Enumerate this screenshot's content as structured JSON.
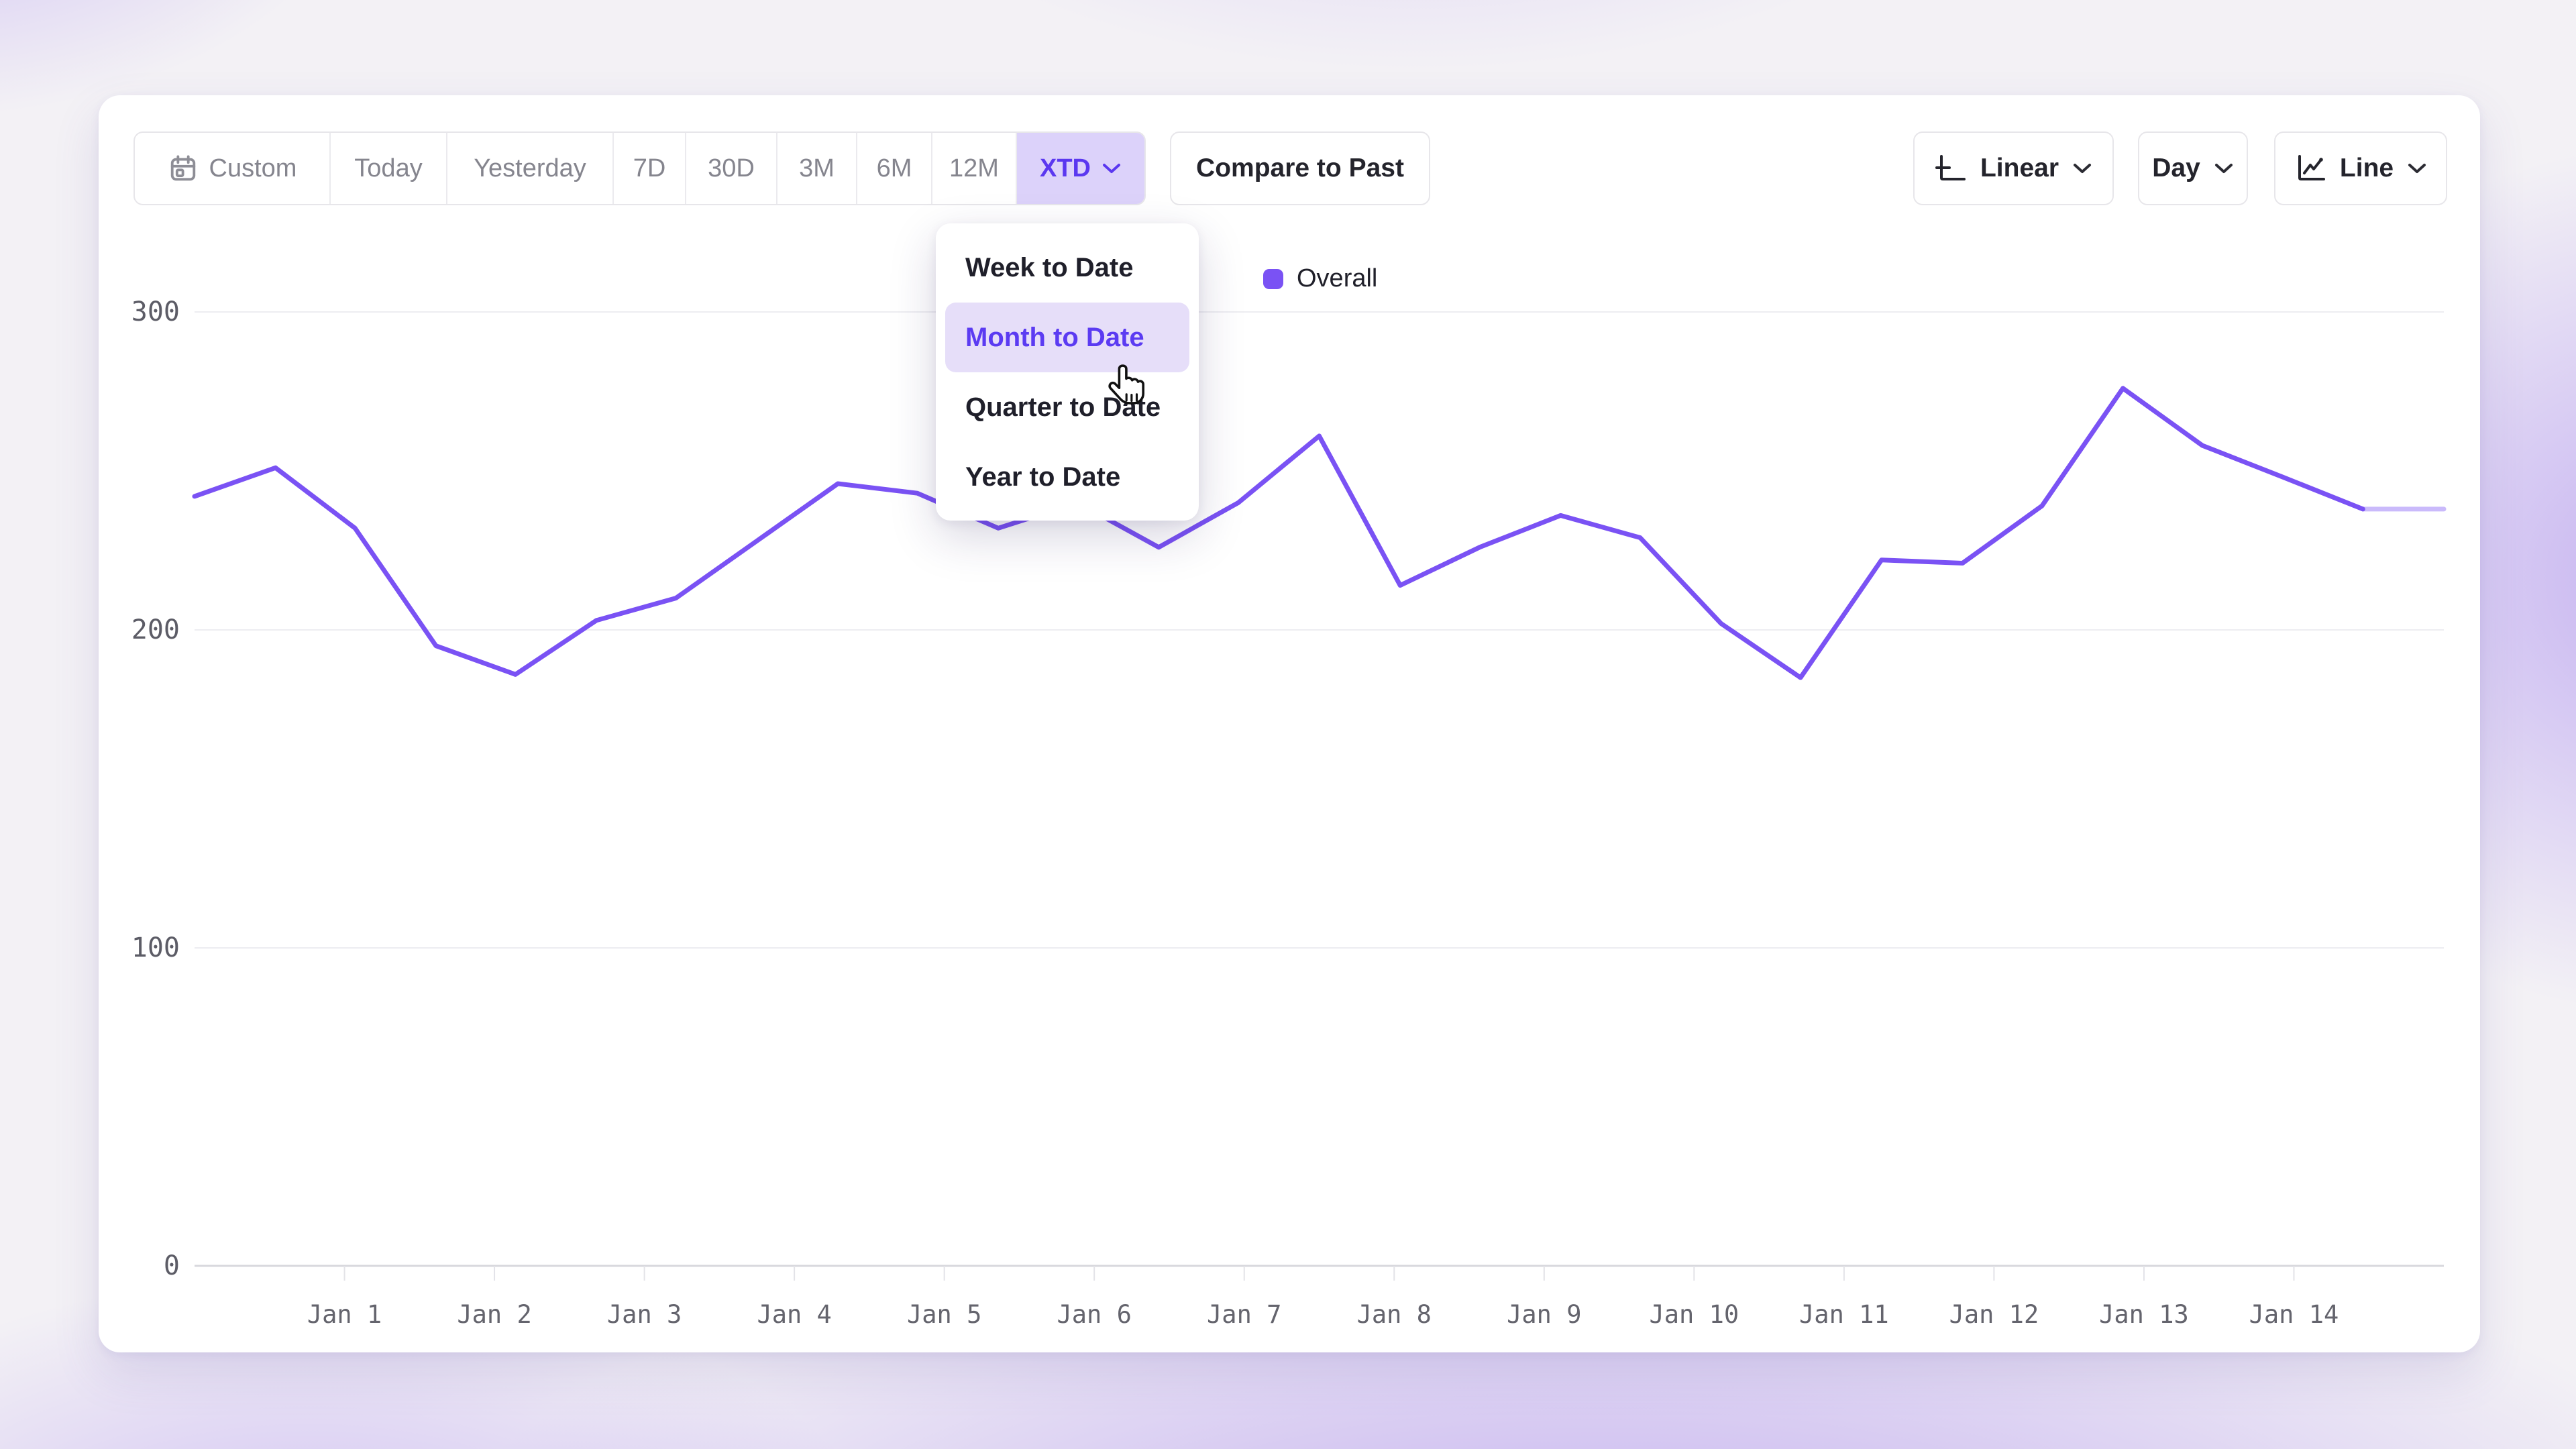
{
  "toolbar": {
    "ranges": [
      {
        "label": "Custom",
        "icon": "calendar-icon",
        "active": false
      },
      {
        "label": "Today",
        "active": false
      },
      {
        "label": "Yesterday",
        "active": false
      },
      {
        "label": "7D",
        "active": false
      },
      {
        "label": "30D",
        "active": false
      },
      {
        "label": "3M",
        "active": false
      },
      {
        "label": "6M",
        "active": false
      },
      {
        "label": "12M",
        "active": false
      },
      {
        "label": "XTD",
        "active": true,
        "has_chevron": true
      }
    ],
    "compare_button_label": "Compare to Past",
    "scale_button": {
      "label": "Linear",
      "icon": "axis-scale-icon",
      "has_chevron": true
    },
    "granularity_button": {
      "label": "Day",
      "has_chevron": true
    },
    "chart_type_button": {
      "label": "Line",
      "icon": "line-chart-icon",
      "has_chevron": true
    }
  },
  "dropdown": {
    "items": [
      {
        "label": "Week to Date",
        "active": false
      },
      {
        "label": "Month to Date",
        "active": true,
        "hovered": true
      },
      {
        "label": "Quarter to Date",
        "active": false
      },
      {
        "label": "Year to Date",
        "active": false
      }
    ]
  },
  "legend": {
    "series": [
      {
        "label": "Overall",
        "color": "#7a52f4"
      }
    ]
  },
  "colors": {
    "accent": "#7a52f4",
    "accent_text": "#5b38f0",
    "accent_bg_pill": "#dcd2fa",
    "accent_bg_menu": "#e6def9",
    "grid": "#ededf1",
    "axis": "#d8d8dd",
    "muted_text": "#85858e",
    "dark_text": "#24242c"
  },
  "chart_data": {
    "type": "line",
    "title": "",
    "xlabel": "",
    "ylabel": "",
    "x_tick_labels": [
      "Jan 1",
      "Jan 2",
      "Jan 3",
      "Jan 4",
      "Jan 5",
      "Jan 6",
      "Jan 7",
      "Jan 8",
      "Jan 9",
      "Jan 10",
      "Jan 11",
      "Jan 12",
      "Jan 13",
      "Jan 14"
    ],
    "x_domain_days": [
      0,
      15
    ],
    "y_ticks": [
      0,
      100,
      200,
      300
    ],
    "ylim": [
      0,
      300
    ],
    "grid": "horizontal",
    "legend_position": "top",
    "series": [
      {
        "name": "Overall",
        "color": "#7a52f4",
        "x_days": [
          0,
          0.54,
          1.07,
          1.61,
          2.14,
          2.68,
          3.21,
          3.75,
          4.29,
          4.82,
          5.36,
          5.89,
          6.43,
          6.96,
          7.5,
          8.04,
          8.57,
          9.11,
          9.64,
          10.18,
          10.71,
          11.25,
          11.79,
          12.32,
          12.86,
          13.39,
          13.93,
          14.46,
          15
        ],
        "values": [
          242,
          251,
          232,
          195,
          186,
          203,
          210,
          228,
          246,
          243,
          232,
          240,
          226,
          240,
          261,
          214,
          226,
          236,
          229,
          202,
          185,
          222,
          221,
          239,
          276,
          258,
          248,
          238,
          238
        ],
        "last_segment_faded": true
      }
    ]
  }
}
